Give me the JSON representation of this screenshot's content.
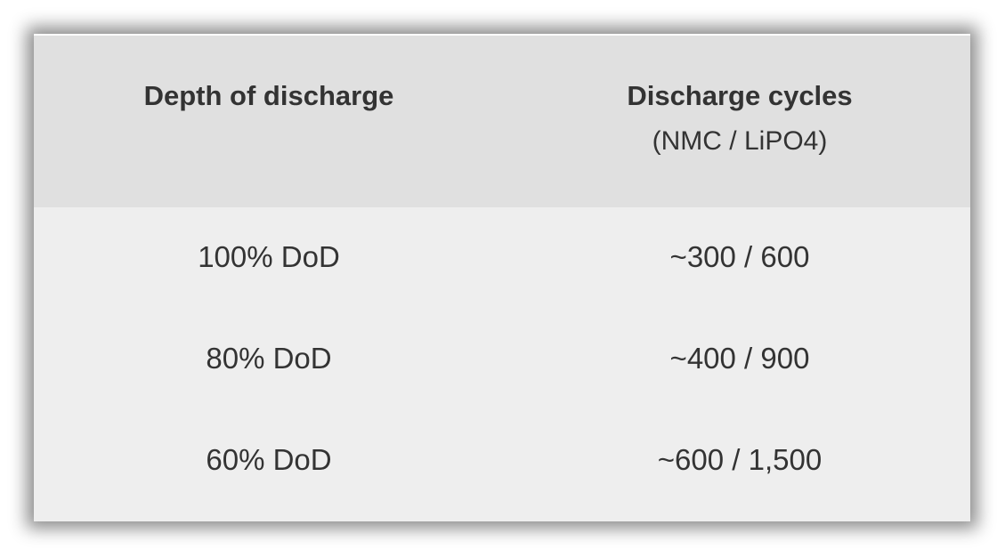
{
  "table": {
    "headers": [
      {
        "label": "Depth of discharge",
        "sub": ""
      },
      {
        "label": "Discharge cycles",
        "sub": "(NMC / LiPO4)"
      }
    ],
    "rows": [
      [
        "100% DoD",
        "~300 / 600"
      ],
      [
        "80% DoD",
        "~400 / 900"
      ],
      [
        "60% DoD",
        "~600 / 1,500"
      ]
    ],
    "colors": {
      "header_bg": "#e0e0e0",
      "body_bg": "#eeeeee",
      "text": "#333333"
    }
  }
}
